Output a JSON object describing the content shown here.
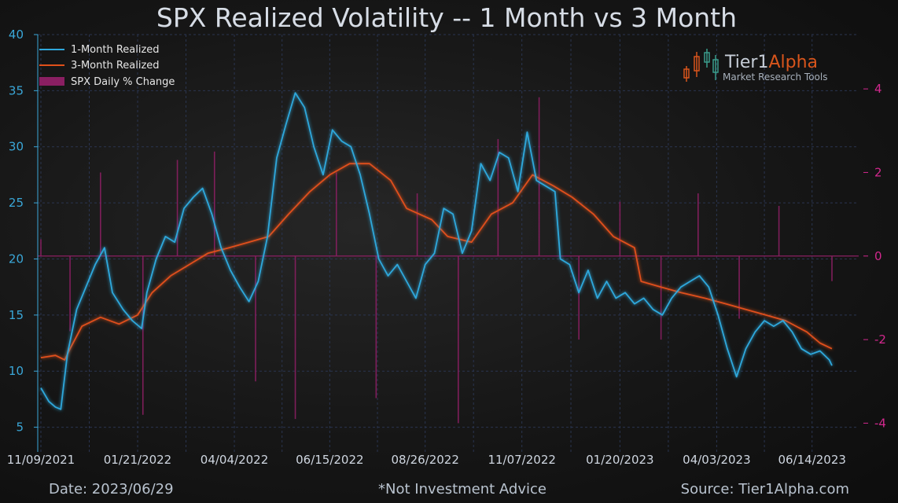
{
  "title": "SPX Realized Volatility -- 1 Month vs 3 Month",
  "footer": {
    "date": "Date: 2023/06/29",
    "disclaimer": "*Not Investment Advice",
    "source": "Source: Tier1Alpha.com"
  },
  "logo": {
    "name_main": "Tier1",
    "name_accent": "Alpha",
    "tagline": "Market  Research Tools"
  },
  "colors": {
    "one_month": "#2fa8dc",
    "three_month": "#e0501a",
    "daily_change": "#8a1f62",
    "grid": "#2a3550"
  },
  "chart_data": {
    "type": "line",
    "title": "SPX Realized Volatility -- 1 Month vs 3 Month",
    "x_ticks": [
      "11/09/2021",
      "01/21/2022",
      "04/04/2022",
      "06/15/2022",
      "08/26/2022",
      "11/07/2022",
      "01/20/2023",
      "04/03/2023",
      "06/14/2023"
    ],
    "x_range": [
      "2021-11-09",
      "2023-06-29"
    ],
    "y_left": {
      "ticks": [
        5,
        10,
        15,
        20,
        25,
        30,
        35,
        40
      ],
      "range": [
        3.5,
        40
      ]
    },
    "y_right": {
      "ticks": [
        4,
        2,
        0,
        -2,
        -4
      ],
      "range": [
        -4.5,
        5.3
      ]
    },
    "grid": true,
    "legend_position": "top-left",
    "legend": [
      {
        "label": "1-Month Realized",
        "kind": "line",
        "color": "#2fa8dc"
      },
      {
        "label": "3-Month Realized",
        "kind": "line",
        "color": "#e0501a"
      },
      {
        "label": "SPX Daily % Change",
        "kind": "bar",
        "color": "#8a1f62"
      }
    ],
    "series": [
      {
        "name": "1-Month Realized",
        "axis": "left",
        "points": [
          [
            "2021-11-09",
            8.5
          ],
          [
            "2021-11-15",
            7.3
          ],
          [
            "2021-11-20",
            6.8
          ],
          [
            "2021-11-24",
            6.6
          ],
          [
            "2021-11-29",
            11.5
          ],
          [
            "2021-12-06",
            15.5
          ],
          [
            "2021-12-13",
            17.5
          ],
          [
            "2021-12-20",
            19.5
          ],
          [
            "2021-12-27",
            21.0
          ],
          [
            "2022-01-02",
            17.0
          ],
          [
            "2022-01-10",
            15.5
          ],
          [
            "2022-01-17",
            14.5
          ],
          [
            "2022-01-24",
            13.8
          ],
          [
            "2022-01-28",
            17.0
          ],
          [
            "2022-02-04",
            20.0
          ],
          [
            "2022-02-11",
            22.0
          ],
          [
            "2022-02-18",
            21.5
          ],
          [
            "2022-02-25",
            24.5
          ],
          [
            "2022-03-04",
            25.5
          ],
          [
            "2022-03-11",
            26.3
          ],
          [
            "2022-03-18",
            24.0
          ],
          [
            "2022-03-25",
            21.0
          ],
          [
            "2022-04-01",
            19.0
          ],
          [
            "2022-04-08",
            17.5
          ],
          [
            "2022-04-15",
            16.2
          ],
          [
            "2022-04-22",
            18.0
          ],
          [
            "2022-04-29",
            22.0
          ],
          [
            "2022-05-06",
            29.0
          ],
          [
            "2022-05-13",
            32.0
          ],
          [
            "2022-05-20",
            34.8
          ],
          [
            "2022-05-27",
            33.5
          ],
          [
            "2022-06-03",
            30.0
          ],
          [
            "2022-06-10",
            27.5
          ],
          [
            "2022-06-17",
            31.5
          ],
          [
            "2022-06-24",
            30.5
          ],
          [
            "2022-07-01",
            30.0
          ],
          [
            "2022-07-08",
            27.5
          ],
          [
            "2022-07-15",
            24.0
          ],
          [
            "2022-07-22",
            20.0
          ],
          [
            "2022-07-29",
            18.5
          ],
          [
            "2022-08-05",
            19.5
          ],
          [
            "2022-08-12",
            18.0
          ],
          [
            "2022-08-19",
            16.5
          ],
          [
            "2022-08-26",
            19.5
          ],
          [
            "2022-09-02",
            20.5
          ],
          [
            "2022-09-09",
            24.5
          ],
          [
            "2022-09-16",
            24.0
          ],
          [
            "2022-09-23",
            20.5
          ],
          [
            "2022-09-30",
            22.5
          ],
          [
            "2022-10-07",
            28.5
          ],
          [
            "2022-10-14",
            27.0
          ],
          [
            "2022-10-21",
            29.5
          ],
          [
            "2022-10-28",
            29.0
          ],
          [
            "2022-11-04",
            26.0
          ],
          [
            "2022-11-11",
            31.3
          ],
          [
            "2022-11-18",
            27.0
          ],
          [
            "2022-11-25",
            26.5
          ],
          [
            "2022-12-02",
            26.0
          ],
          [
            "2022-12-06",
            20.0
          ],
          [
            "2022-12-13",
            19.5
          ],
          [
            "2022-12-20",
            17.0
          ],
          [
            "2022-12-27",
            19.0
          ],
          [
            "2023-01-03",
            16.5
          ],
          [
            "2023-01-10",
            18.0
          ],
          [
            "2023-01-17",
            16.5
          ],
          [
            "2023-01-24",
            17.0
          ],
          [
            "2023-01-31",
            16.0
          ],
          [
            "2023-02-07",
            16.5
          ],
          [
            "2023-02-14",
            15.5
          ],
          [
            "2023-02-21",
            15.0
          ],
          [
            "2023-02-28",
            16.5
          ],
          [
            "2023-03-07",
            17.5
          ],
          [
            "2023-03-14",
            18.0
          ],
          [
            "2023-03-21",
            18.5
          ],
          [
            "2023-03-28",
            17.5
          ],
          [
            "2023-04-04",
            15.0
          ],
          [
            "2023-04-11",
            12.0
          ],
          [
            "2023-04-18",
            9.5
          ],
          [
            "2023-04-25",
            12.0
          ],
          [
            "2023-05-02",
            13.5
          ],
          [
            "2023-05-09",
            14.5
          ],
          [
            "2023-05-16",
            14.0
          ],
          [
            "2023-05-23",
            14.5
          ],
          [
            "2023-05-30",
            13.5
          ],
          [
            "2023-06-06",
            12.0
          ],
          [
            "2023-06-13",
            11.5
          ],
          [
            "2023-06-20",
            11.8
          ],
          [
            "2023-06-27",
            11.0
          ],
          [
            "2023-06-29",
            10.5
          ]
        ]
      },
      {
        "name": "3-Month Realized",
        "axis": "left",
        "points": [
          [
            "2021-11-09",
            11.2
          ],
          [
            "2021-11-20",
            11.4
          ],
          [
            "2021-11-27",
            11.0
          ],
          [
            "2021-12-01",
            12.0
          ],
          [
            "2021-12-10",
            14.0
          ],
          [
            "2021-12-24",
            14.8
          ],
          [
            "2022-01-07",
            14.2
          ],
          [
            "2022-01-21",
            15.0
          ],
          [
            "2022-02-01",
            17.0
          ],
          [
            "2022-02-15",
            18.5
          ],
          [
            "2022-03-01",
            19.5
          ],
          [
            "2022-03-15",
            20.5
          ],
          [
            "2022-03-31",
            21.0
          ],
          [
            "2022-04-15",
            21.5
          ],
          [
            "2022-04-30",
            22.0
          ],
          [
            "2022-05-15",
            24.0
          ],
          [
            "2022-05-31",
            26.0
          ],
          [
            "2022-06-15",
            27.5
          ],
          [
            "2022-06-30",
            28.5
          ],
          [
            "2022-07-15",
            28.5
          ],
          [
            "2022-07-31",
            27.0
          ],
          [
            "2022-08-12",
            24.5
          ],
          [
            "2022-08-31",
            23.5
          ],
          [
            "2022-09-12",
            22.0
          ],
          [
            "2022-09-30",
            21.5
          ],
          [
            "2022-10-15",
            24.0
          ],
          [
            "2022-10-31",
            25.0
          ],
          [
            "2022-11-15",
            27.5
          ],
          [
            "2022-12-01",
            26.5
          ],
          [
            "2022-12-15",
            25.5
          ],
          [
            "2022-12-31",
            24.0
          ],
          [
            "2023-01-15",
            22.0
          ],
          [
            "2023-01-31",
            21.0
          ],
          [
            "2023-02-05",
            18.0
          ],
          [
            "2023-02-20",
            17.5
          ],
          [
            "2023-03-07",
            17.0
          ],
          [
            "2023-03-25",
            16.5
          ],
          [
            "2023-04-10",
            16.0
          ],
          [
            "2023-04-25",
            15.5
          ],
          [
            "2023-05-10",
            15.0
          ],
          [
            "2023-05-25",
            14.5
          ],
          [
            "2023-06-10",
            13.5
          ],
          [
            "2023-06-20",
            12.5
          ],
          [
            "2023-06-29",
            12.0
          ]
        ]
      }
    ],
    "bars": {
      "name": "SPX Daily % Change",
      "axis": "right",
      "dates": [
        "2021-11-09",
        "2021-12-01",
        "2021-12-24",
        "2022-01-25",
        "2022-02-20",
        "2022-03-20",
        "2022-04-20",
        "2022-05-20",
        "2022-06-20",
        "2022-07-20",
        "2022-08-20",
        "2022-09-20",
        "2022-10-20",
        "2022-11-20",
        "2022-12-20",
        "2023-01-20",
        "2023-02-20",
        "2023-03-20",
        "2023-04-20",
        "2023-05-20",
        "2023-06-29"
      ],
      "values": [
        0.4,
        -1.8,
        2.0,
        -3.8,
        2.3,
        2.5,
        -3.0,
        -3.9,
        2.0,
        -3.4,
        1.5,
        -4.0,
        2.8,
        3.8,
        -2.0,
        1.3,
        -2.0,
        1.5,
        -1.5,
        1.2,
        -0.6
      ]
    }
  }
}
